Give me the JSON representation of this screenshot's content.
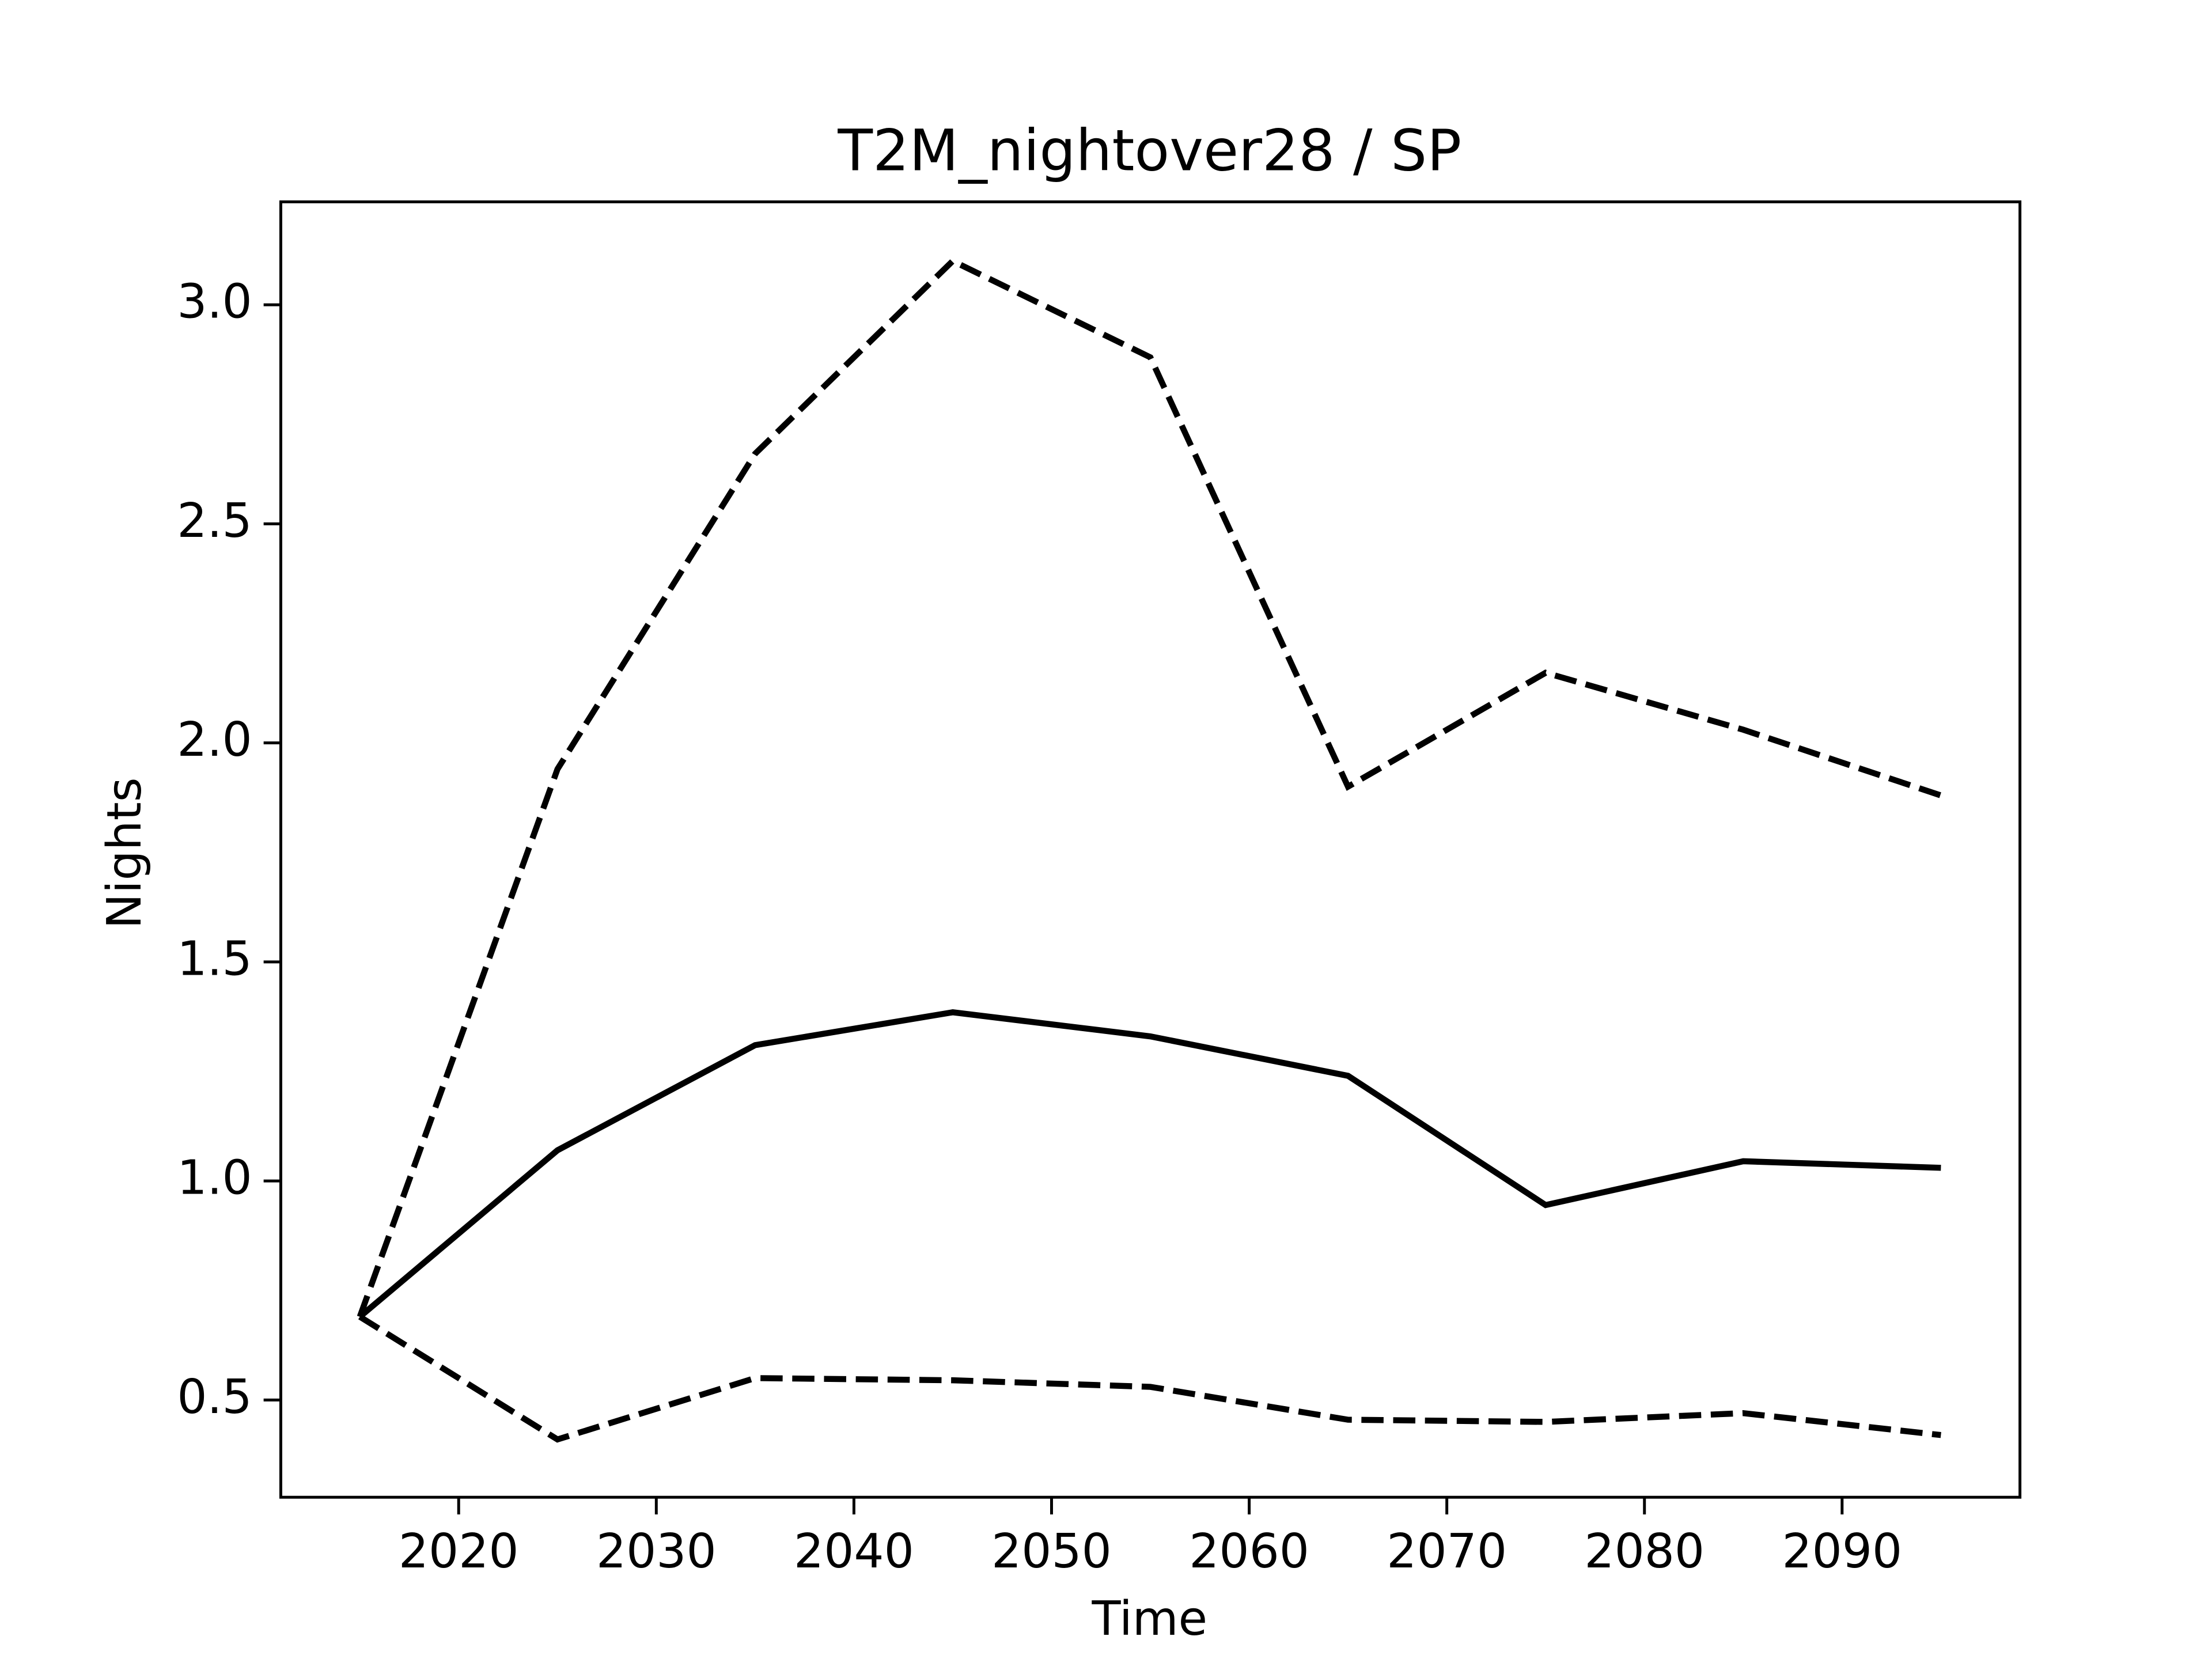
{
  "chart_data": {
    "type": "line",
    "title": "T2M_nightover28 / SP",
    "xlabel": "Time",
    "ylabel": "Nights",
    "x": [
      2015,
      2025,
      2035,
      2045,
      2055,
      2065,
      2075,
      2085,
      2095
    ],
    "series": [
      {
        "color": "#000000",
        "linestyle": "solid",
        "values": [
          0.69,
          1.07,
          1.31,
          1.385,
          1.33,
          1.24,
          0.945,
          1.045,
          1.03
        ]
      },
      {
        "color": "#000000",
        "linestyle": "dashed",
        "values": [
          0.69,
          1.94,
          2.66,
          3.1,
          2.88,
          1.9,
          2.16,
          2.03,
          1.88
        ]
      },
      {
        "color": "#000000",
        "linestyle": "dashed",
        "values": [
          0.69,
          0.41,
          0.55,
          0.545,
          0.53,
          0.455,
          0.45,
          0.47,
          0.42
        ]
      }
    ],
    "xlim": [
      2011,
      2099
    ],
    "ylim": [
      0.278,
      3.235
    ],
    "xticks": [
      2020,
      2030,
      2040,
      2050,
      2060,
      2070,
      2080,
      2090
    ],
    "yticks": [
      0.5,
      {
        "value": 1,
        "label": "1.0"
      },
      1.5,
      {
        "value": 2,
        "label": "2.0"
      },
      2.5,
      {
        "value": 3,
        "label": "3.0"
      }
    ],
    "grid": false
  }
}
